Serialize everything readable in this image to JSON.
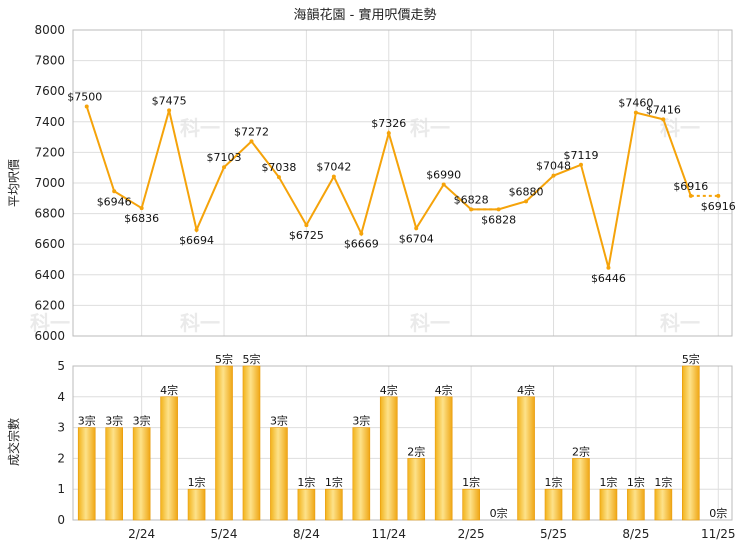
{
  "chart_data": [
    {
      "type": "line",
      "title": "海韻花園 - 實用呎價走勢",
      "ylabel": "平均呎價",
      "ylim": [
        6000,
        8000
      ],
      "yticks": [
        6000,
        6200,
        6400,
        6600,
        6800,
        7000,
        7200,
        7400,
        7600,
        7800,
        8000
      ],
      "grid": true,
      "color": "#f5a30a",
      "points": [
        {
          "label": "$7500",
          "value": 7500
        },
        {
          "label": "$6946",
          "value": 6946
        },
        {
          "label": "$6836",
          "value": 6836
        },
        {
          "label": "$7475",
          "value": 7475
        },
        {
          "label": "$6694",
          "value": 6694
        },
        {
          "label": "$7103",
          "value": 7103
        },
        {
          "label": "$7272",
          "value": 7272
        },
        {
          "label": "$7038",
          "value": 7038
        },
        {
          "label": "$6725",
          "value": 6725
        },
        {
          "label": "$7042",
          "value": 7042
        },
        {
          "label": "$6669",
          "value": 6669
        },
        {
          "label": "$7326",
          "value": 7326
        },
        {
          "label": "$6704",
          "value": 6704
        },
        {
          "label": "$6990",
          "value": 6990
        },
        {
          "label": "$6828",
          "value": 6828
        },
        {
          "label": "$6828",
          "value": 6828
        },
        {
          "label": "$6880",
          "value": 6880
        },
        {
          "label": "$7048",
          "value": 7048
        },
        {
          "label": "$7119",
          "value": 7119
        },
        {
          "label": "$6446",
          "value": 6446
        },
        {
          "label": "$7460",
          "value": 7460
        },
        {
          "label": "$7416",
          "value": 7416
        },
        {
          "label": "$6916",
          "value": 6916
        },
        {
          "label": "$6916",
          "value": 6916
        }
      ]
    },
    {
      "type": "bar",
      "ylabel": "成交宗數",
      "ylim": [
        0,
        5
      ],
      "yticks": [
        0,
        1,
        2,
        3,
        4,
        5
      ],
      "grid": true,
      "xticks": [
        "2/24",
        "5/24",
        "8/24",
        "11/24",
        "2/25",
        "5/25",
        "8/25",
        "11/25"
      ],
      "color": "#f5a30a",
      "bars": [
        {
          "label": "3宗",
          "value": 3
        },
        {
          "label": "3宗",
          "value": 3
        },
        {
          "label": "3宗",
          "value": 3
        },
        {
          "label": "4宗",
          "value": 4
        },
        {
          "label": "1宗",
          "value": 1
        },
        {
          "label": "5宗",
          "value": 5
        },
        {
          "label": "5宗",
          "value": 5
        },
        {
          "label": "3宗",
          "value": 3
        },
        {
          "label": "1宗",
          "value": 1
        },
        {
          "label": "1宗",
          "value": 1
        },
        {
          "label": "3宗",
          "value": 3
        },
        {
          "label": "4宗",
          "value": 4
        },
        {
          "label": "2宗",
          "value": 2
        },
        {
          "label": "4宗",
          "value": 4
        },
        {
          "label": "1宗",
          "value": 1
        },
        {
          "label": "0宗",
          "value": 0
        },
        {
          "label": "4宗",
          "value": 4
        },
        {
          "label": "1宗",
          "value": 1
        },
        {
          "label": "2宗",
          "value": 2
        },
        {
          "label": "1宗",
          "value": 1
        },
        {
          "label": "1宗",
          "value": 1
        },
        {
          "label": "1宗",
          "value": 1
        },
        {
          "label": "5宗",
          "value": 5
        },
        {
          "label": "0宗",
          "value": 0
        }
      ]
    }
  ],
  "watermark": "科一"
}
